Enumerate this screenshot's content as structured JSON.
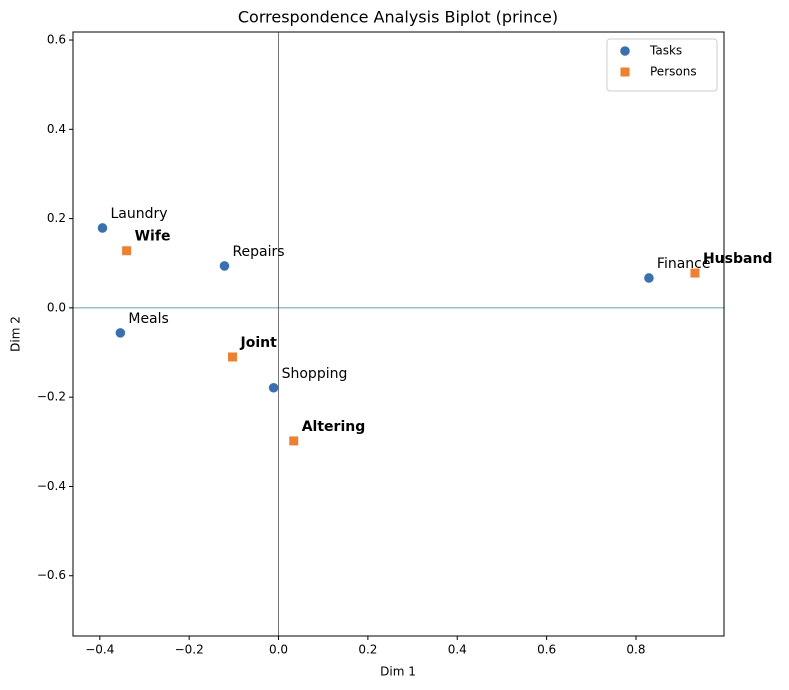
{
  "chart_data": {
    "type": "scatter",
    "title": "Correspondence Analysis Biplot (prince)",
    "x_label": "Dim 1",
    "y_label": "Dim 2",
    "xlim": [
      -0.46,
      0.997
    ],
    "ylim": [
      -0.735,
      0.618
    ],
    "xticks": [
      {
        "value": -0.4,
        "label": "−0.4"
      },
      {
        "value": -0.2,
        "label": "−0.2"
      },
      {
        "value": 0.0,
        "label": "0.0"
      },
      0.2,
      0.4,
      0.6,
      0.8
    ],
    "yticks": [
      {
        "value": -0.6,
        "label": "−0.6"
      },
      {
        "value": -0.4,
        "label": "−0.4"
      },
      {
        "value": -0.2,
        "label": "−0.2"
      },
      {
        "value": 0.0,
        "label": "0.0"
      },
      0.2,
      0.4,
      0.6
    ],
    "hline": 0,
    "vline": 0,
    "legend": "upper right",
    "series": [
      {
        "name": "Tasks",
        "color": "#3a6fb0",
        "marker": "circle",
        "bold": false,
        "labels": [
          "Laundry",
          "Repairs",
          "Meals",
          "Shopping",
          "Finance"
        ],
        "x": [
          -0.394,
          -0.121,
          -0.354,
          -0.011,
          0.829
        ],
        "values": [
          0.179,
          0.094,
          -0.056,
          -0.179,
          0.067
        ]
      },
      {
        "name": "Persons",
        "color": "#ed8032",
        "marker": "square",
        "bold": true,
        "labels": [
          "Wife",
          "Joint",
          "Altering",
          "Husband"
        ],
        "x": [
          -0.34,
          -0.103,
          0.034,
          0.932
        ],
        "values": [
          0.128,
          -0.11,
          -0.298,
          0.078
        ]
      }
    ]
  }
}
